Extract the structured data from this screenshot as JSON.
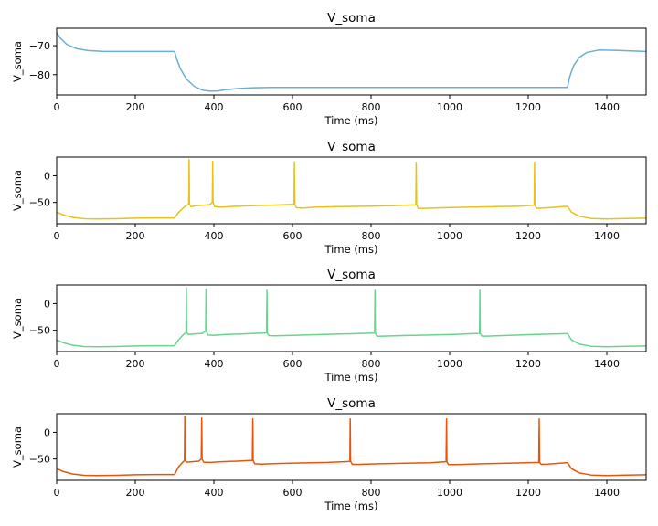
{
  "chart_data": [
    {
      "type": "line",
      "title": "V_soma",
      "xlabel": "Time (ms)",
      "ylabel": "V_soma",
      "xlim": [
        0,
        1500
      ],
      "ylim": [
        -87,
        -64
      ],
      "xticks": [
        0,
        200,
        400,
        600,
        800,
        1000,
        1200,
        1400
      ],
      "yticks": [
        -80,
        -70
      ],
      "color": "#6baed6",
      "grid": false,
      "series": [
        {
          "x": [
            0,
            10,
            25,
            50,
            80,
            120,
            200,
            300,
            305,
            315,
            330,
            350,
            370,
            390,
            410,
            430,
            460,
            500,
            550,
            600,
            800,
            1000,
            1200,
            1300,
            1305,
            1315,
            1330,
            1350,
            1380,
            1420,
            1460,
            1500
          ],
          "y": [
            -65.5,
            -67.5,
            -69.5,
            -71,
            -71.7,
            -72,
            -72,
            -72,
            -74.5,
            -78,
            -81.5,
            -84,
            -85.3,
            -85.7,
            -85.6,
            -85.2,
            -84.8,
            -84.5,
            -84.4,
            -84.4,
            -84.4,
            -84.4,
            -84.4,
            -84.4,
            -81,
            -77,
            -74,
            -72.3,
            -71.5,
            -71.6,
            -71.8,
            -72
          ]
        }
      ]
    },
    {
      "type": "line",
      "title": "V_soma",
      "xlabel": "Time (ms)",
      "ylabel": "V_soma",
      "xlim": [
        0,
        1500
      ],
      "ylim": [
        -90,
        35
      ],
      "xticks": [
        0,
        200,
        400,
        600,
        800,
        1000,
        1200,
        1400
      ],
      "yticks": [
        -50,
        0
      ],
      "color": "#e8c21a",
      "grid": false,
      "spike_times": [
        337,
        397,
        605,
        915,
        1216
      ],
      "spike_peak": 30,
      "series": [
        {
          "x": [
            0,
            15,
            40,
            70,
            100,
            150,
            200,
            250,
            300,
            310,
            320,
            330,
            336,
            337,
            338,
            342,
            355,
            375,
            390,
            396,
            397,
            398,
            402,
            420,
            450,
            500,
            550,
            604,
            605,
            606,
            610,
            625,
            660,
            720,
            800,
            860,
            914,
            915,
            916,
            920,
            935,
            980,
            1050,
            1120,
            1180,
            1215,
            1216,
            1217,
            1221,
            1235,
            1260,
            1296,
            1300,
            1310,
            1330,
            1360,
            1400,
            1450,
            1500
          ],
          "y": [
            -68,
            -73,
            -78,
            -80.5,
            -81,
            -80.5,
            -79.5,
            -79,
            -79,
            -69,
            -62,
            -56,
            -53,
            30,
            -53,
            -58,
            -56,
            -55,
            -54,
            -50,
            27,
            -50,
            -58,
            -59,
            -57.5,
            -56,
            -55,
            -53.5,
            26,
            -53.5,
            -60,
            -60.5,
            -59,
            -58,
            -57,
            -56,
            -54.5,
            25,
            -54.5,
            -61,
            -61,
            -60,
            -59,
            -58,
            -57,
            -55,
            25,
            -55,
            -61,
            -60.5,
            -59.5,
            -57.5,
            -57.5,
            -68,
            -76,
            -80,
            -81,
            -80,
            -79.5
          ]
        }
      ]
    },
    {
      "type": "line",
      "title": "V_soma",
      "xlabel": "Time (ms)",
      "ylabel": "V_soma",
      "xlim": [
        0,
        1500
      ],
      "ylim": [
        -90,
        35
      ],
      "xticks": [
        0,
        200,
        400,
        600,
        800,
        1000,
        1200,
        1400
      ],
      "yticks": [
        -50,
        0
      ],
      "color": "#6ad48e",
      "grid": false,
      "spike_times": [
        330,
        380,
        535,
        810,
        1077
      ],
      "spike_peak": 30,
      "series": [
        {
          "x": [
            0,
            15,
            40,
            70,
            100,
            150,
            200,
            250,
            300,
            310,
            320,
            329,
            330,
            331,
            335,
            350,
            370,
            379,
            380,
            381,
            385,
            400,
            430,
            470,
            500,
            534,
            535,
            536,
            540,
            555,
            600,
            650,
            700,
            760,
            809,
            810,
            811,
            815,
            830,
            880,
            950,
            1010,
            1076,
            1077,
            1078,
            1082,
            1095,
            1150,
            1220,
            1296,
            1300,
            1310,
            1330,
            1360,
            1400,
            1450,
            1500
          ],
          "y": [
            -68,
            -73,
            -78,
            -80.5,
            -81,
            -80.5,
            -79.5,
            -79,
            -79,
            -68,
            -60,
            -54,
            30,
            -54,
            -58,
            -57,
            -56,
            -52,
            27,
            -52,
            -59,
            -59.5,
            -58,
            -57,
            -56,
            -55,
            25,
            -55,
            -60,
            -60.5,
            -59.5,
            -58.5,
            -57.5,
            -56.5,
            -55,
            25,
            -55,
            -61,
            -61,
            -60,
            -59,
            -58,
            -56,
            25,
            -56,
            -61,
            -61,
            -59.5,
            -58,
            -56.5,
            -56.5,
            -68,
            -76,
            -80,
            -81,
            -80,
            -79.5
          ]
        }
      ]
    },
    {
      "type": "line",
      "title": "V_soma",
      "xlabel": "Time (ms)",
      "ylabel": "V_soma",
      "xlim": [
        0,
        1500
      ],
      "ylim": [
        -90,
        35
      ],
      "xticks": [
        0,
        200,
        400,
        600,
        800,
        1000,
        1200,
        1400
      ],
      "yticks": [
        -50,
        0
      ],
      "color": "#e6550d",
      "grid": false,
      "spike_times": [
        326,
        369,
        499,
        747,
        992,
        1228
      ],
      "spike_peak": 30,
      "series": [
        {
          "x": [
            0,
            15,
            40,
            70,
            100,
            150,
            200,
            250,
            300,
            310,
            318,
            325,
            326,
            327,
            331,
            345,
            362,
            368,
            369,
            370,
            374,
            390,
            420,
            460,
            498,
            499,
            500,
            504,
            520,
            560,
            620,
            690,
            746,
            747,
            748,
            752,
            770,
            820,
            890,
            950,
            991,
            992,
            993,
            997,
            1015,
            1080,
            1150,
            1227,
            1228,
            1229,
            1233,
            1250,
            1296,
            1300,
            1310,
            1330,
            1360,
            1400,
            1450,
            1500
          ],
          "y": [
            -68,
            -73,
            -78,
            -80.5,
            -81,
            -80.5,
            -79.5,
            -79,
            -79,
            -65,
            -58,
            -53,
            30,
            -53,
            -56,
            -55,
            -54,
            -50,
            27,
            -50,
            -56,
            -56.5,
            -55,
            -54,
            -52.5,
            25,
            -52.5,
            -59,
            -59.5,
            -58.5,
            -57.5,
            -56.5,
            -54.5,
            25,
            -54.5,
            -60,
            -60,
            -59,
            -58,
            -57,
            -55,
            25,
            -55,
            -60.5,
            -60.5,
            -59,
            -58,
            -56.5,
            25,
            -56.5,
            -60,
            -59.5,
            -57,
            -57,
            -68,
            -76,
            -80,
            -81,
            -80,
            -79.5
          ]
        }
      ]
    }
  ]
}
